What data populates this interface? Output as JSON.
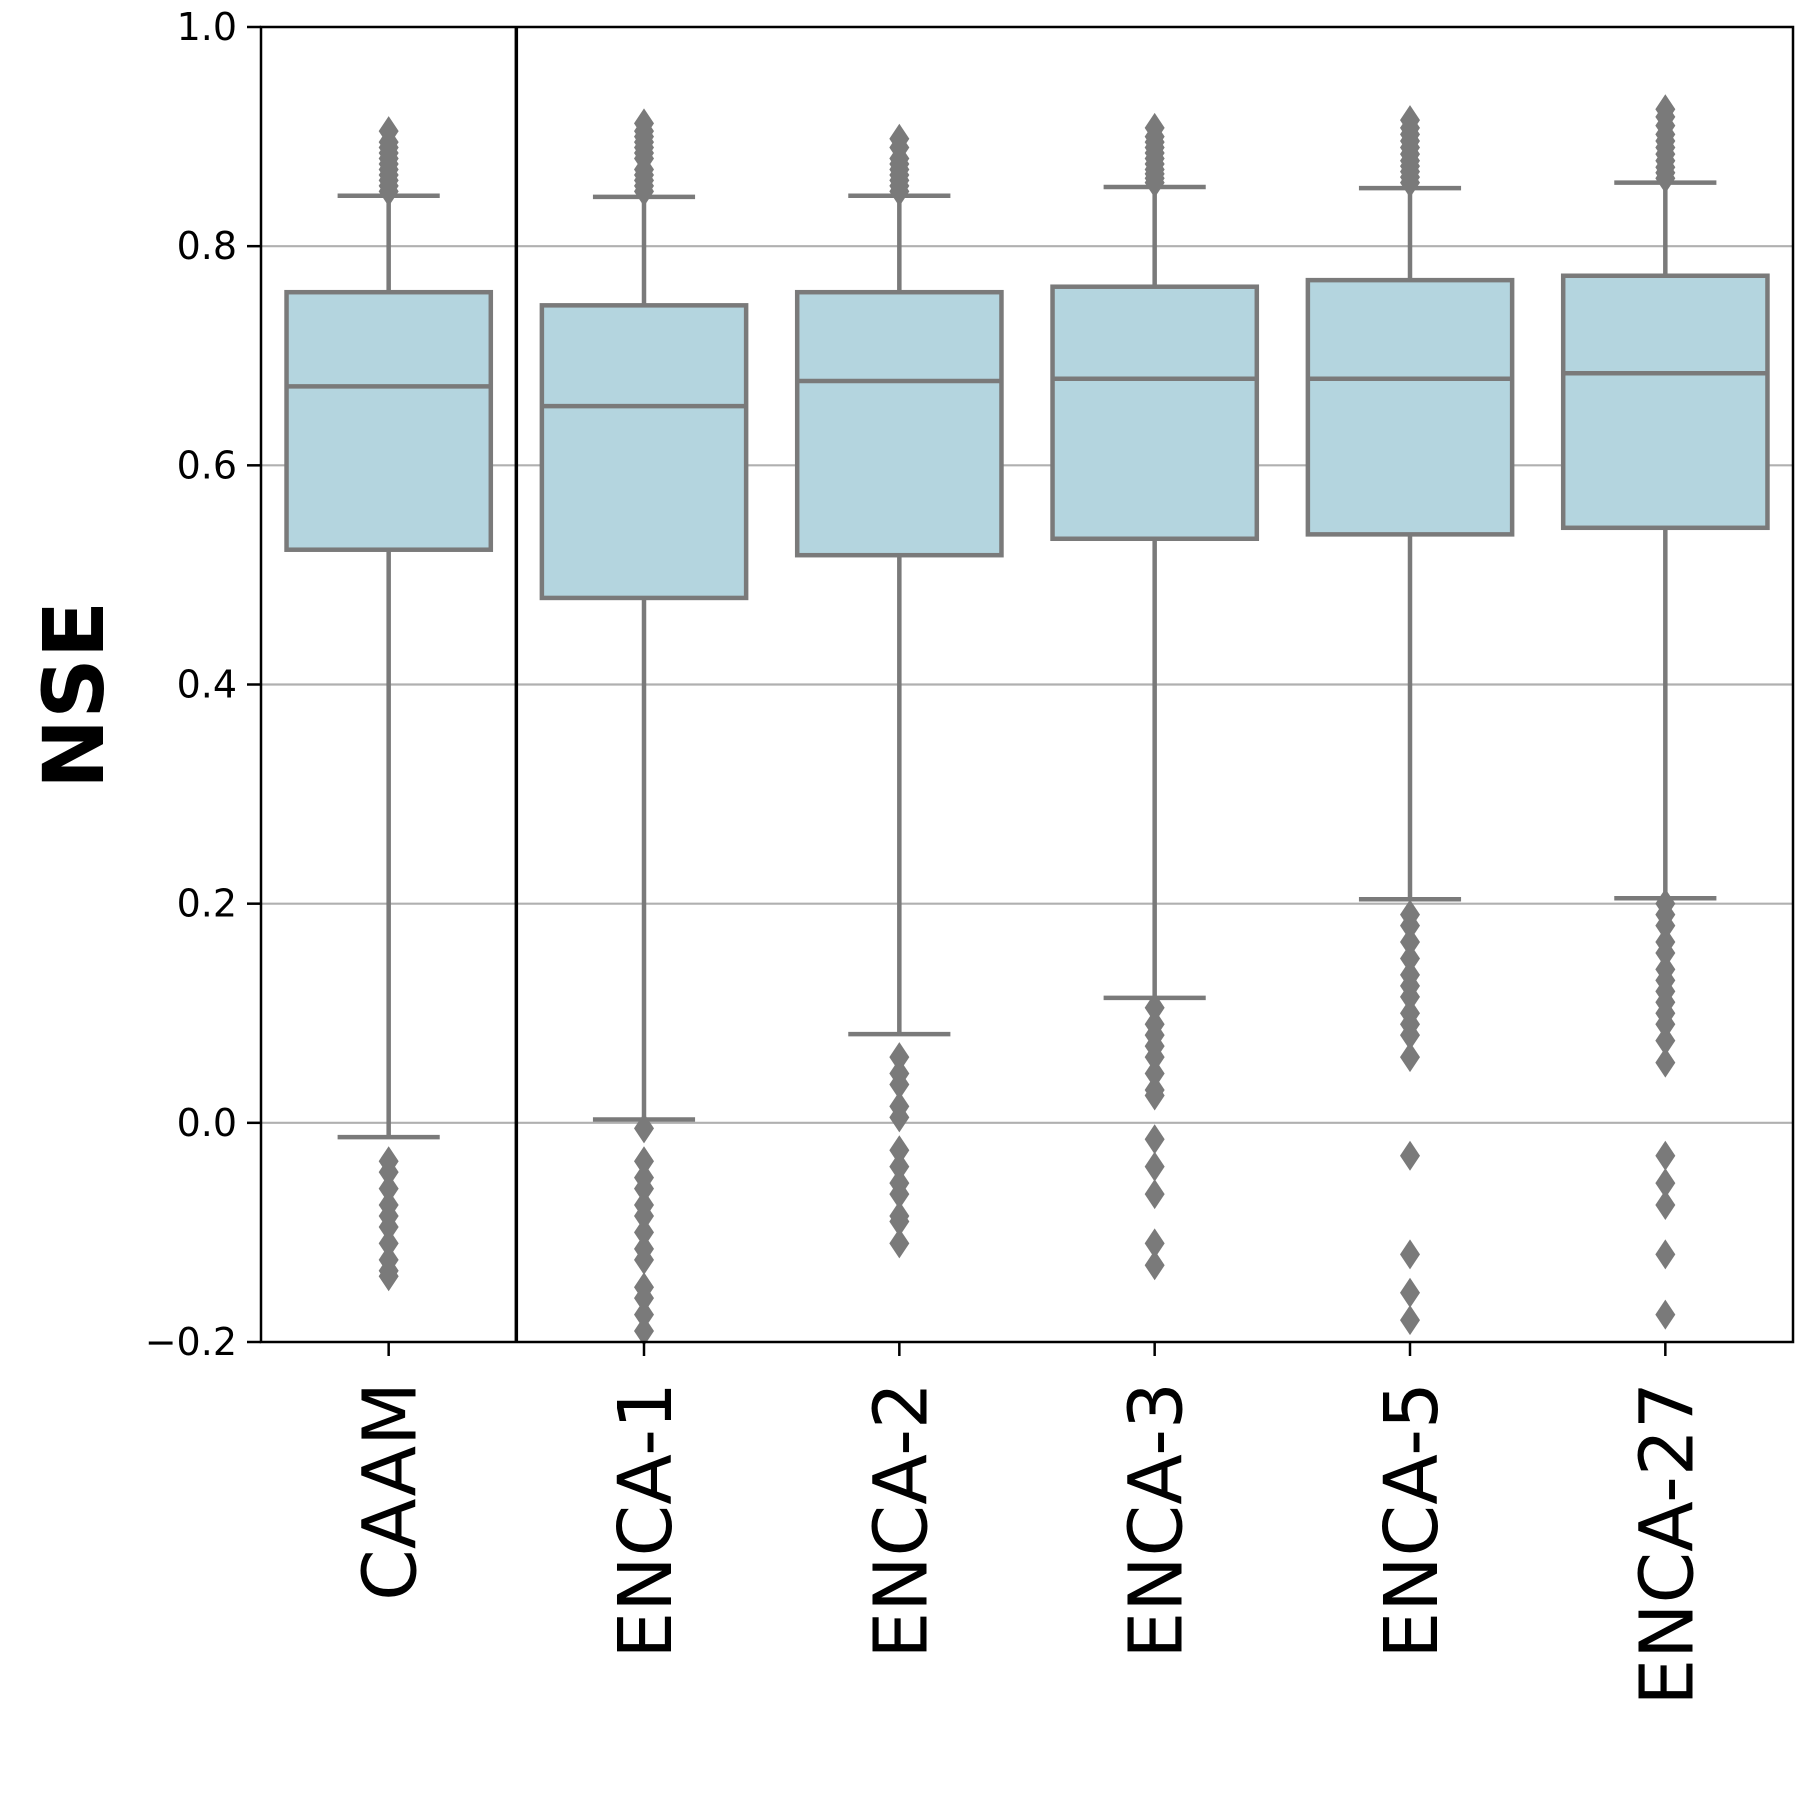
{
  "chart_data": {
    "type": "box",
    "title": "",
    "xlabel": "",
    "ylabel": "NSE",
    "ylim": [
      -0.2,
      1.0
    ],
    "yticks": [
      "−0.2",
      "0.0",
      "0.2",
      "0.4",
      "0.6",
      "0.8",
      "1.0"
    ],
    "ytick_values": [
      -0.2,
      0.0,
      0.2,
      0.4,
      0.6,
      0.8,
      1.0
    ],
    "grid": "horizontal",
    "separator_after_category": "CAAM",
    "colors": {
      "box_fill": "#b4d5df",
      "box_edge": "#7a7a7a",
      "grid": "#b0b0b0",
      "axis": "#000000"
    },
    "categories": [
      "CAAM",
      "ENCA-1",
      "ENCA-2",
      "ENCA-3",
      "ENCA-5",
      "ENCA-27"
    ],
    "boxes": [
      {
        "label": "CAAM",
        "whisker_low": -0.013,
        "q1": 0.523,
        "median": 0.672,
        "q3": 0.758,
        "whisker_high": 0.846,
        "outliers_high": [
          0.85,
          0.855,
          0.86,
          0.865,
          0.87,
          0.875,
          0.88,
          0.885,
          0.89,
          0.895,
          0.905
        ],
        "outliers_low": [
          -0.035,
          -0.045,
          -0.06,
          -0.075,
          -0.085,
          -0.095,
          -0.11,
          -0.125,
          -0.135,
          -0.14
        ]
      },
      {
        "label": "ENCA-1",
        "whisker_low": 0.003,
        "q1": 0.479,
        "median": 0.654,
        "q3": 0.746,
        "whisker_high": 0.845,
        "outliers_high": [
          0.85,
          0.855,
          0.86,
          0.865,
          0.87,
          0.88,
          0.885,
          0.89,
          0.895,
          0.9,
          0.905,
          0.912
        ],
        "outliers_low": [
          -0.005,
          -0.035,
          -0.05,
          -0.06,
          -0.075,
          -0.085,
          -0.1,
          -0.115,
          -0.125,
          -0.15,
          -0.16,
          -0.175,
          -0.19
        ]
      },
      {
        "label": "ENCA-2",
        "whisker_low": 0.081,
        "q1": 0.518,
        "median": 0.677,
        "q3": 0.758,
        "whisker_high": 0.846,
        "outliers_high": [
          0.85,
          0.855,
          0.86,
          0.865,
          0.87,
          0.875,
          0.88,
          0.89,
          0.898
        ],
        "outliers_low": [
          0.06,
          0.045,
          0.035,
          0.015,
          0.005,
          -0.025,
          -0.04,
          -0.055,
          -0.065,
          -0.085,
          -0.09,
          -0.11
        ]
      },
      {
        "label": "ENCA-3",
        "whisker_low": 0.114,
        "q1": 0.533,
        "median": 0.679,
        "q3": 0.763,
        "whisker_high": 0.854,
        "outliers_high": [
          0.858,
          0.862,
          0.866,
          0.87,
          0.875,
          0.88,
          0.885,
          0.89,
          0.895,
          0.9,
          0.908
        ],
        "outliers_low": [
          0.105,
          0.09,
          0.08,
          0.07,
          0.06,
          0.045,
          0.03,
          0.025,
          -0.015,
          -0.04,
          -0.065,
          -0.11,
          -0.13
        ]
      },
      {
        "label": "ENCA-5",
        "whisker_low": 0.204,
        "q1": 0.537,
        "median": 0.679,
        "q3": 0.769,
        "whisker_high": 0.853,
        "outliers_high": [
          0.858,
          0.863,
          0.868,
          0.873,
          0.878,
          0.884,
          0.89,
          0.896,
          0.902,
          0.908,
          0.915
        ],
        "outliers_low": [
          0.19,
          0.18,
          0.165,
          0.15,
          0.135,
          0.125,
          0.115,
          0.1,
          0.09,
          0.08,
          0.06,
          -0.03,
          -0.12,
          -0.155,
          -0.18
        ]
      },
      {
        "label": "ENCA-27",
        "whisker_low": 0.205,
        "q1": 0.543,
        "median": 0.684,
        "q3": 0.773,
        "whisker_high": 0.858,
        "outliers_high": [
          0.862,
          0.867,
          0.872,
          0.878,
          0.884,
          0.89,
          0.896,
          0.902,
          0.91,
          0.918,
          0.925
        ],
        "outliers_low": [
          0.2,
          0.19,
          0.18,
          0.165,
          0.155,
          0.14,
          0.13,
          0.12,
          0.11,
          0.1,
          0.09,
          0.075,
          0.055,
          -0.03,
          -0.055,
          -0.075,
          -0.12,
          -0.175
        ]
      }
    ]
  }
}
